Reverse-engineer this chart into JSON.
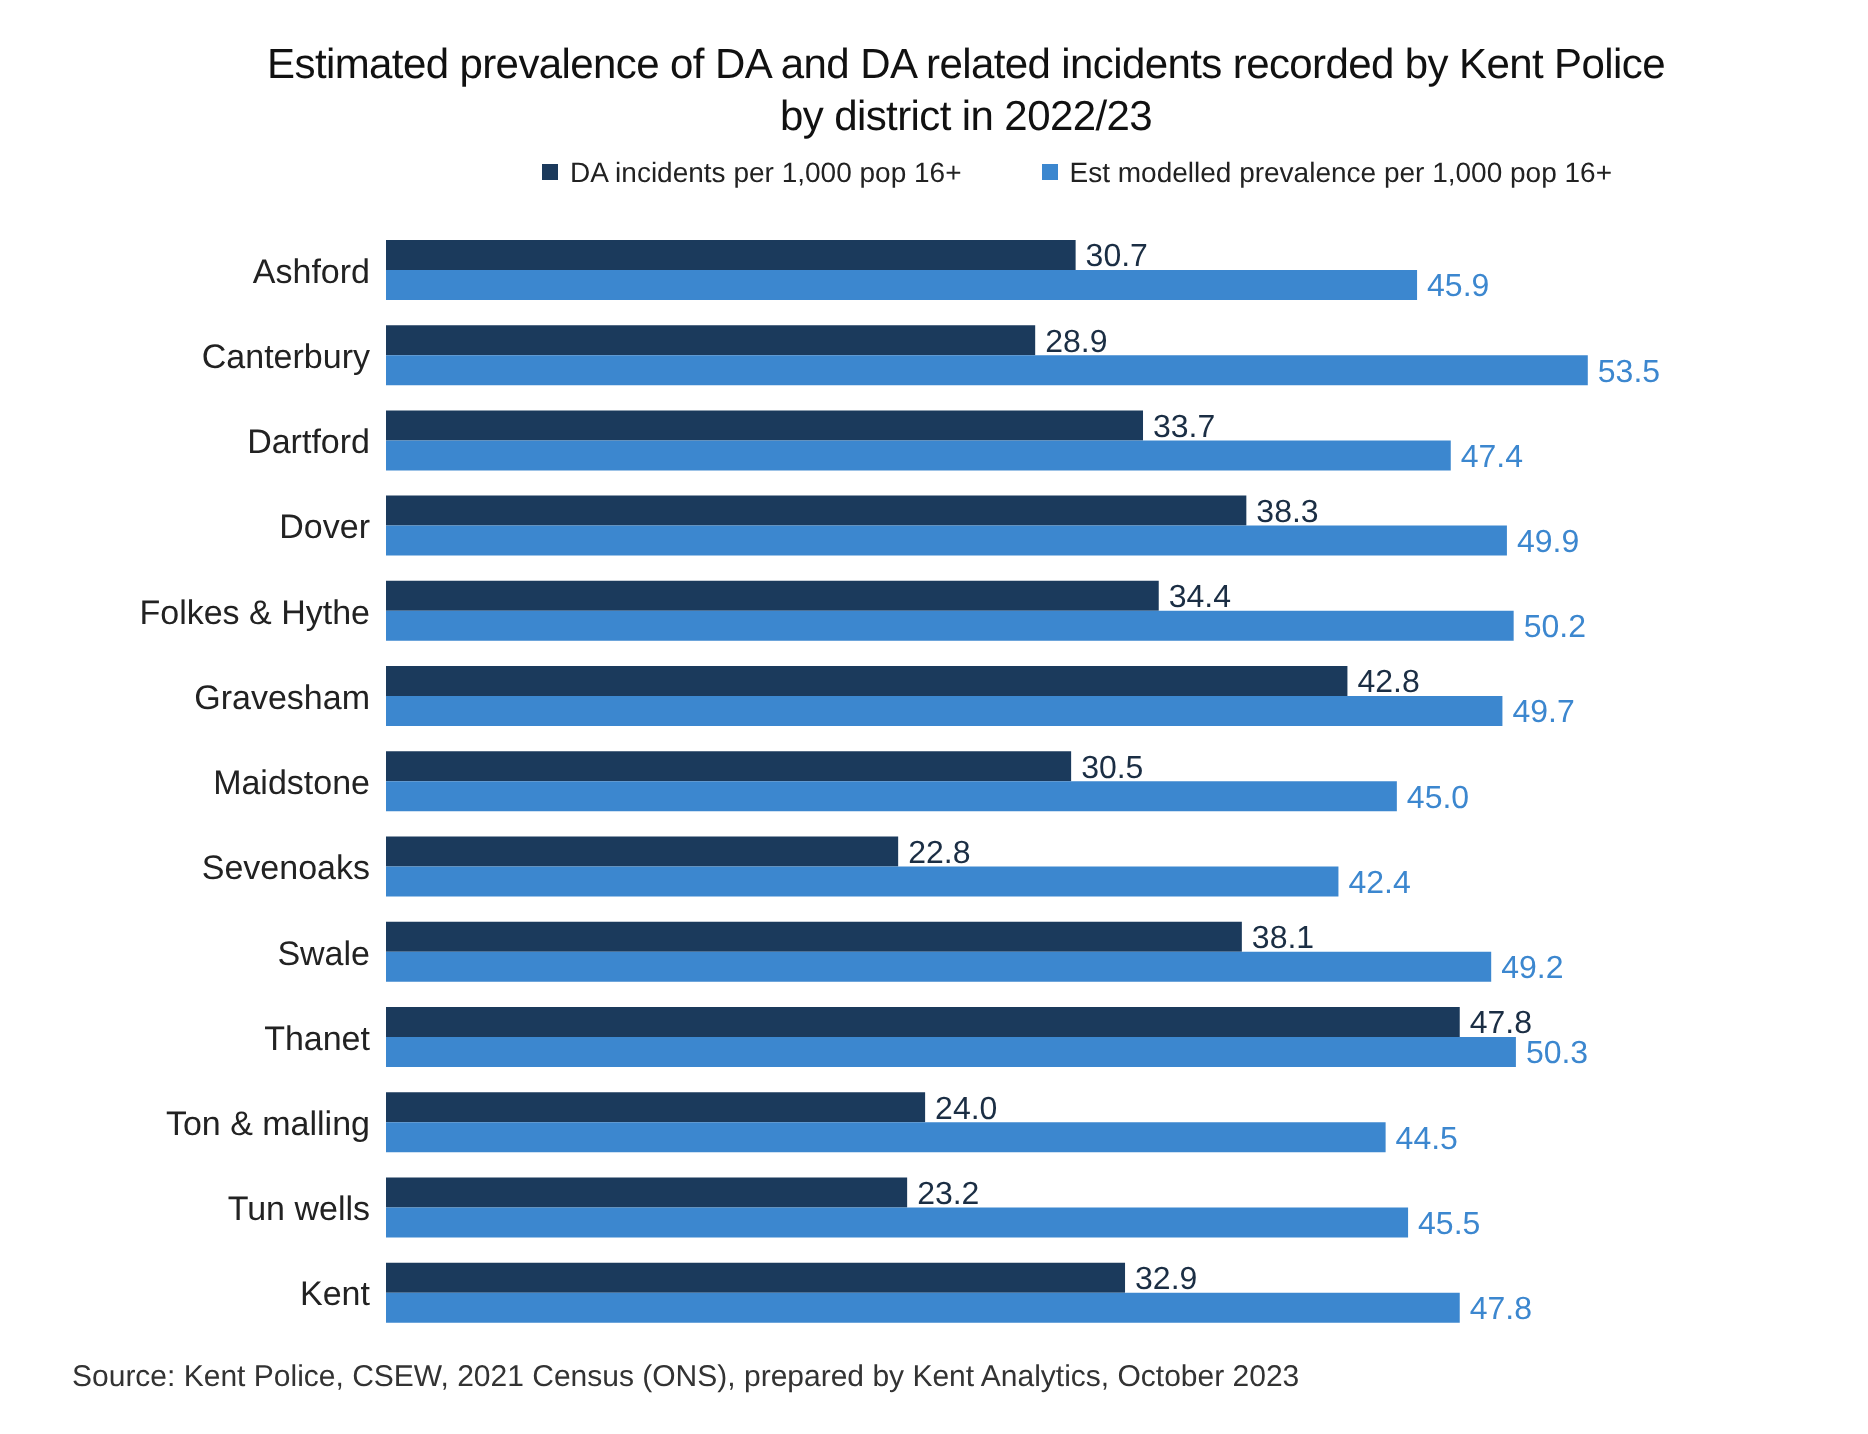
{
  "chart_data": {
    "type": "bar",
    "orientation": "horizontal",
    "title": "Estimated prevalence of DA and DA related incidents recorded by Kent Police by district in 2022/23",
    "categories": [
      "Ashford",
      "Canterbury",
      "Dartford",
      "Dover",
      "Folkes & Hythe",
      "Gravesham",
      "Maidstone",
      "Sevenoaks",
      "Swale",
      "Thanet",
      "Ton & malling",
      "Tun wells",
      "Kent"
    ],
    "series": [
      {
        "name": "DA incidents per 1,000 pop 16+",
        "color": "#1b3a5c",
        "values": [
          30.7,
          28.9,
          33.7,
          38.3,
          34.4,
          42.8,
          30.5,
          22.8,
          38.1,
          47.8,
          24.0,
          23.2,
          32.9
        ],
        "value_labels": [
          "30.7",
          "28.9",
          "33.7",
          "38.3",
          "34.4",
          "42.8",
          "30.5",
          "22.8",
          "38.1",
          "47.8",
          "24.0",
          "23.2",
          "32.9"
        ]
      },
      {
        "name": "Est modelled prevalence per 1,000 pop 16+",
        "color": "#3c87cf",
        "values": [
          45.9,
          53.5,
          47.4,
          49.9,
          50.2,
          49.7,
          45.0,
          42.4,
          49.2,
          50.3,
          44.5,
          45.5,
          47.8
        ],
        "value_labels": [
          "45.9",
          "53.5",
          "47.4",
          "49.9",
          "50.2",
          "49.7",
          "45.0",
          "42.4",
          "49.2",
          "50.3",
          "44.5",
          "45.5",
          "47.8"
        ]
      }
    ],
    "legend": "top",
    "grid": false,
    "annotations": [
      "Source: Kent Police, CSEW, 2021 Census (ONS), prepared by Kent Analytics, October 2023"
    ]
  }
}
